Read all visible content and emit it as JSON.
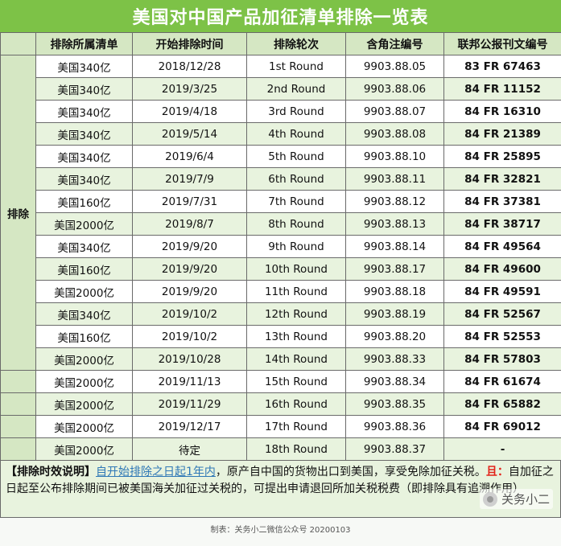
{
  "title": "美国对中国产品加征清单排除一览表",
  "headers": [
    "排除所属清单",
    "开始排除时间",
    "排除轮次",
    "含角注编号",
    "联邦公报刊文编号"
  ],
  "side_label": "排除",
  "rows": [
    {
      "list": "美国340亿",
      "date": "2018/12/28",
      "round": "1st Round",
      "code": "9903.88.05",
      "fr": "83 FR 67463"
    },
    {
      "list": "美国340亿",
      "date": "2019/3/25",
      "round": "2nd Round",
      "code": "9903.88.06",
      "fr": "84 FR 11152"
    },
    {
      "list": "美国340亿",
      "date": "2019/4/18",
      "round": "3rd Round",
      "code": "9903.88.07",
      "fr": "84 FR 16310"
    },
    {
      "list": "美国340亿",
      "date": "2019/5/14",
      "round": "4th Round",
      "code": "9903.88.08",
      "fr": "84 FR 21389"
    },
    {
      "list": "美国340亿",
      "date": "2019/6/4",
      "round": "5th Round",
      "code": "9903.88.10",
      "fr": "84 FR 25895"
    },
    {
      "list": "美国340亿",
      "date": "2019/7/9",
      "round": "6th Round",
      "code": "9903.88.11",
      "fr": "84 FR 32821"
    },
    {
      "list": "美国160亿",
      "date": "2019/7/31",
      "round": "7th Round",
      "code": "9903.88.12",
      "fr": "84 FR 37381"
    },
    {
      "list": "美国2000亿",
      "date": "2019/8/7",
      "round": "8th Round",
      "code": "9903.88.13",
      "fr": "84 FR 38717"
    },
    {
      "list": "美国340亿",
      "date": "2019/9/20",
      "round": "9th Round",
      "code": "9903.88.14",
      "fr": "84 FR 49564"
    },
    {
      "list": "美国160亿",
      "date": "2019/9/20",
      "round": "10th Round",
      "code": "9903.88.17",
      "fr": "84 FR 49600"
    },
    {
      "list": "美国2000亿",
      "date": "2019/9/20",
      "round": "11th Round",
      "code": "9903.88.18",
      "fr": "84 FR 49591"
    },
    {
      "list": "美国340亿",
      "date": "2019/10/2",
      "round": "12th Round",
      "code": "9903.88.19",
      "fr": "84 FR 52567"
    },
    {
      "list": "美国160亿",
      "date": "2019/10/2",
      "round": "13th Round",
      "code": "9903.88.20",
      "fr": "84 FR 52553"
    },
    {
      "list": "美国2000亿",
      "date": "2019/10/28",
      "round": "14th Round",
      "code": "9903.88.33",
      "fr": "84 FR 57803"
    },
    {
      "list": "美国2000亿",
      "date": "2019/11/13",
      "round": "15th Round",
      "code": "9903.88.34",
      "fr": "84 FR 61674"
    },
    {
      "list": "美国2000亿",
      "date": "2019/11/29",
      "round": "16th Round",
      "code": "9903.88.35",
      "fr": "84 FR 65882"
    },
    {
      "list": "美国2000亿",
      "date": "2019/12/17",
      "round": "17th Round",
      "code": "9903.88.36",
      "fr": "84 FR 69012"
    },
    {
      "list": "美国2000亿",
      "date": "待定",
      "round": "18th Round",
      "code": "9903.88.37",
      "fr": "-"
    }
  ],
  "note": {
    "label": "【排除时效说明】",
    "highlight": "自开始排除之日起1年内",
    "text1": "，原产自中国的货物出口到美国，享受免除加征关税。",
    "red": "且：",
    "text2": "自加征之日起至公布排除期间已被美国海关加征过关税的，可提出申请退回所加关税税费（即排除具有追溯作用）"
  },
  "footer": "制表：关务小二微信公众号 20200103",
  "watermark": "关务小二"
}
